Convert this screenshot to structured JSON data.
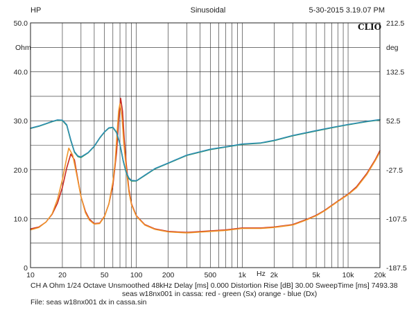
{
  "header": {
    "left": "HP",
    "center": "Sinusoidal",
    "right": "5-30-2015 3.19.07 PM"
  },
  "brand": "CLIO",
  "info": {
    "line1": "CH A  Ohm   1/24 Octave   Unsmoothed   48kHz   Delay [ms] 0.000   Distortion Rise [dB] 30.00   SweepTime [ms] 7493.38",
    "line2": "seas w18nx001 in cassa: red - green (Sx) orange - blue (Dx)",
    "line3": "File: seas w18nx001 dx in cassa.sin"
  },
  "colors": {
    "red": "#c8281e",
    "orange": "#f0962d",
    "green": "#2f8f50",
    "blue": "#2f8fb4",
    "grid": "#222222",
    "background": "#ffffff"
  },
  "chart_data": {
    "type": "line",
    "x_scale": "log",
    "xlim": [
      10,
      20000
    ],
    "ylim": [
      0,
      50
    ],
    "y2lim": [
      -187.5,
      212.5
    ],
    "grid": true,
    "ylabel": "Ohm",
    "y2label": "deg",
    "xunit": "Hz",
    "x_ticks": [
      {
        "value": 10,
        "label": "10"
      },
      {
        "value": 20,
        "label": "20"
      },
      {
        "value": 50,
        "label": "50"
      },
      {
        "value": 100,
        "label": "100"
      },
      {
        "value": 200,
        "label": "200"
      },
      {
        "value": 500,
        "label": "500"
      },
      {
        "value": 1000,
        "label": "1k"
      },
      {
        "value": 2000,
        "label": "2k"
      },
      {
        "value": 5000,
        "label": "5k"
      },
      {
        "value": 10000,
        "label": "10k"
      },
      {
        "value": 20000,
        "label": "20k"
      }
    ],
    "y_ticks": [
      {
        "value": 0,
        "label": "0"
      },
      {
        "value": 10,
        "label": "10.0"
      },
      {
        "value": 20,
        "label": "20.0"
      },
      {
        "value": 30,
        "label": "30.0"
      },
      {
        "value": 40,
        "label": "40.0"
      },
      {
        "value": 50,
        "label": "50.0"
      }
    ],
    "y2_ticks": [
      {
        "value": -187.5,
        "label": "-187.5"
      },
      {
        "value": -107.5,
        "label": "-107.5"
      },
      {
        "value": -27.5,
        "label": "-27.5"
      },
      {
        "value": 52.5,
        "label": "52.5"
      },
      {
        "value": 132.5,
        "label": "132.5"
      },
      {
        "value": 212.5,
        "label": "212.5"
      }
    ],
    "series": [
      {
        "color_key": "red",
        "axis": "left",
        "points": [
          [
            10,
            7.9
          ],
          [
            12,
            8.3
          ],
          [
            14,
            9.3
          ],
          [
            16,
            10.9
          ],
          [
            18,
            13.2
          ],
          [
            20,
            16.4
          ],
          [
            22,
            20.4
          ],
          [
            24,
            23.2
          ],
          [
            26,
            22.0
          ],
          [
            28,
            18.0
          ],
          [
            30,
            14.5
          ],
          [
            33,
            11.5
          ],
          [
            36,
            9.9
          ],
          [
            40,
            9.0
          ],
          [
            45,
            9.1
          ],
          [
            50,
            10.5
          ],
          [
            55,
            13.0
          ],
          [
            60,
            16.8
          ],
          [
            65,
            23.5
          ],
          [
            68,
            30.0
          ],
          [
            71,
            34.6
          ],
          [
            74,
            32.0
          ],
          [
            77,
            26.0
          ],
          [
            80,
            21.5
          ],
          [
            85,
            16.0
          ],
          [
            90,
            13.0
          ],
          [
            100,
            10.6
          ],
          [
            120,
            8.8
          ],
          [
            150,
            7.9
          ],
          [
            200,
            7.4
          ],
          [
            300,
            7.2
          ],
          [
            500,
            7.5
          ],
          [
            700,
            7.7
          ],
          [
            1000,
            8.1
          ],
          [
            1500,
            8.1
          ],
          [
            2000,
            8.3
          ],
          [
            3000,
            8.8
          ],
          [
            4000,
            9.8
          ],
          [
            5000,
            10.7
          ],
          [
            6000,
            11.7
          ],
          [
            8000,
            13.6
          ],
          [
            10000,
            15.0
          ],
          [
            12000,
            16.5
          ],
          [
            15000,
            19.2
          ],
          [
            18000,
            22.0
          ],
          [
            20000,
            23.9
          ]
        ]
      },
      {
        "color_key": "orange",
        "axis": "left",
        "points": [
          [
            10,
            7.7
          ],
          [
            12,
            8.2
          ],
          [
            14,
            9.3
          ],
          [
            16,
            11.0
          ],
          [
            18,
            14.0
          ],
          [
            20,
            18.0
          ],
          [
            22,
            22.5
          ],
          [
            23,
            24.4
          ],
          [
            25,
            23.0
          ],
          [
            27,
            19.5
          ],
          [
            30,
            14.5
          ],
          [
            33,
            11.2
          ],
          [
            36,
            9.7
          ],
          [
            40,
            8.9
          ],
          [
            45,
            9.0
          ],
          [
            50,
            10.4
          ],
          [
            55,
            13.0
          ],
          [
            60,
            17.5
          ],
          [
            63,
            21.5
          ],
          [
            66,
            28.0
          ],
          [
            68,
            32.0
          ],
          [
            70,
            33.5
          ],
          [
            73,
            31.0
          ],
          [
            76,
            25.5
          ],
          [
            80,
            20.5
          ],
          [
            85,
            15.5
          ],
          [
            90,
            12.8
          ],
          [
            100,
            10.5
          ],
          [
            120,
            8.7
          ],
          [
            150,
            7.8
          ],
          [
            200,
            7.3
          ],
          [
            300,
            7.1
          ],
          [
            500,
            7.4
          ],
          [
            700,
            7.6
          ],
          [
            1000,
            8.0
          ],
          [
            1500,
            8.0
          ],
          [
            2000,
            8.2
          ],
          [
            3000,
            8.7
          ],
          [
            4000,
            9.7
          ],
          [
            5000,
            10.6
          ],
          [
            6000,
            11.6
          ],
          [
            8000,
            13.5
          ],
          [
            10000,
            14.9
          ],
          [
            12000,
            16.3
          ],
          [
            15000,
            19.0
          ],
          [
            18000,
            21.8
          ],
          [
            20000,
            23.6
          ]
        ]
      },
      {
        "color_key": "green",
        "axis": "right",
        "points": [
          [
            10,
            40.0
          ],
          [
            12,
            43.5
          ],
          [
            14,
            47.5
          ],
          [
            16,
            51.0
          ],
          [
            18,
            53.5
          ],
          [
            20,
            53.0
          ],
          [
            22,
            45.0
          ],
          [
            24,
            20.0
          ],
          [
            26,
            1.0
          ],
          [
            28,
            -6.0
          ],
          [
            30,
            -7.5
          ],
          [
            35,
            0
          ],
          [
            40,
            10.5
          ],
          [
            45,
            24.0
          ],
          [
            50,
            34.0
          ],
          [
            55,
            40.5
          ],
          [
            60,
            41.5
          ],
          [
            65,
            33.0
          ],
          [
            70,
            14.0
          ],
          [
            75,
            -13.0
          ],
          [
            80,
            -32.0
          ],
          [
            85,
            -42.0
          ],
          [
            90,
            -46.0
          ],
          [
            100,
            -46.0
          ],
          [
            120,
            -37.0
          ],
          [
            150,
            -26.0
          ],
          [
            200,
            -17.0
          ],
          [
            300,
            -4.0
          ],
          [
            500,
            5.5
          ],
          [
            700,
            9.5
          ],
          [
            1000,
            14.0
          ],
          [
            1500,
            16.0
          ],
          [
            2000,
            20.0
          ],
          [
            3000,
            28.0
          ],
          [
            5000,
            36.0
          ],
          [
            7000,
            41.0
          ],
          [
            10000,
            46.0
          ],
          [
            15000,
            51.0
          ],
          [
            20000,
            54.0
          ]
        ]
      },
      {
        "color_key": "blue",
        "axis": "right",
        "points": [
          [
            10,
            40.5
          ],
          [
            12,
            44.0
          ],
          [
            14,
            48.0
          ],
          [
            16,
            51.5
          ],
          [
            18,
            54.0
          ],
          [
            20,
            53.5
          ],
          [
            22,
            46.0
          ],
          [
            24,
            21.5
          ],
          [
            26,
            2.0
          ],
          [
            28,
            -5.0
          ],
          [
            30,
            -6.5
          ],
          [
            35,
            0.5
          ],
          [
            40,
            11.0
          ],
          [
            45,
            24.5
          ],
          [
            50,
            34.5
          ],
          [
            55,
            41.0
          ],
          [
            60,
            42.0
          ],
          [
            65,
            34.0
          ],
          [
            70,
            15.0
          ],
          [
            75,
            -12.0
          ],
          [
            80,
            -31.0
          ],
          [
            85,
            -41.0
          ],
          [
            90,
            -45.0
          ],
          [
            100,
            -45.5
          ],
          [
            120,
            -36.5
          ],
          [
            150,
            -25.5
          ],
          [
            200,
            -16.5
          ],
          [
            300,
            -3.5
          ],
          [
            500,
            6.0
          ],
          [
            700,
            10.0
          ],
          [
            1000,
            14.5
          ],
          [
            1500,
            16.5
          ],
          [
            2000,
            20.5
          ],
          [
            3000,
            28.5
          ],
          [
            5000,
            36.5
          ],
          [
            7000,
            41.5
          ],
          [
            10000,
            46.5
          ],
          [
            15000,
            51.5
          ],
          [
            20000,
            54.5
          ]
        ]
      }
    ]
  }
}
